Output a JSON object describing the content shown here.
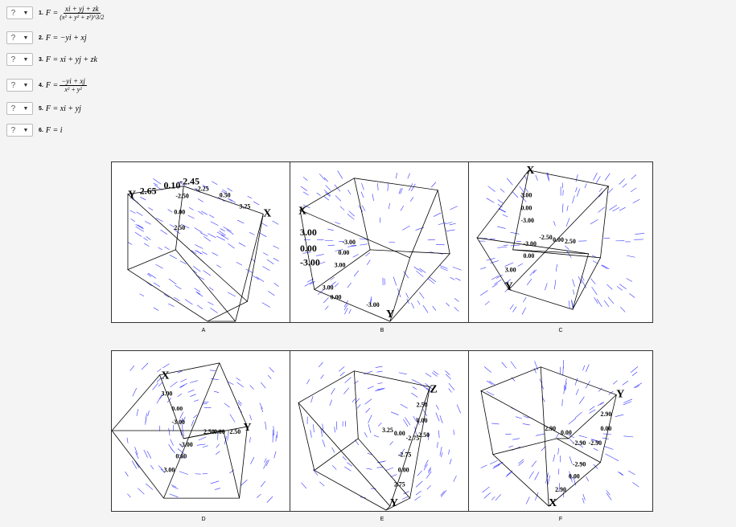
{
  "questions": [
    {
      "number": "1.",
      "select": "?",
      "lhs": "F =",
      "numerator": "xi + yj + zk",
      "denominator": "(x² + y² + z²)^3/2"
    },
    {
      "number": "2.",
      "select": "?",
      "expr": "F = −yi + xj"
    },
    {
      "number": "3.",
      "select": "?",
      "expr": "F = xi + yj + zk"
    },
    {
      "number": "4.",
      "select": "?",
      "lhs": "F =",
      "numerator": "−yi + xj",
      "denominator": "x² + y²"
    },
    {
      "number": "5.",
      "select": "?",
      "expr": "F = xi + yj"
    },
    {
      "number": "6.",
      "select": "?",
      "expr": "F = i"
    }
  ],
  "select_arrow_icon": "triangle-down-icon",
  "arrow_color": "#3333ff",
  "plots": [
    {
      "label": "A",
      "ticks": [
        "Y",
        "2.65",
        "0.10",
        "-2.45",
        "-2.25",
        "0.50",
        "3.25",
        "X",
        "-2.50",
        "0.00",
        "2.50"
      ]
    },
    {
      "label": "B",
      "ticks": [
        "X",
        "3.00",
        "0.00",
        "-3.00",
        "-3.00",
        "0.00",
        "3.00",
        "Y",
        "3.00",
        "0.00",
        "-3.00"
      ]
    },
    {
      "label": "C",
      "ticks": [
        "X",
        "3.00",
        "0.00",
        "-3.00",
        "-2.50",
        "0.00",
        "2.50",
        "Y",
        "-3.00",
        "0.00",
        "3.00"
      ]
    },
    {
      "label": "D",
      "ticks": [
        "X",
        "3.00",
        "0.00",
        "-3.00",
        "2.50",
        "0.00",
        "-2.50",
        "Y",
        "-3.00",
        "0.00",
        "3.00"
      ]
    },
    {
      "label": "E",
      "ticks": [
        "Z",
        "2.50",
        "0.00",
        "-2.50",
        "3.25",
        "0.00",
        "-2.75",
        "Y",
        "-2.75",
        "0.00",
        "2.75"
      ]
    },
    {
      "label": "F",
      "ticks": [
        "Y",
        "2.90",
        "0.00",
        "-2.90",
        "2.90",
        "0.00",
        "-2.90",
        "X",
        "-2.90",
        "0.00",
        "2.90"
      ]
    }
  ]
}
